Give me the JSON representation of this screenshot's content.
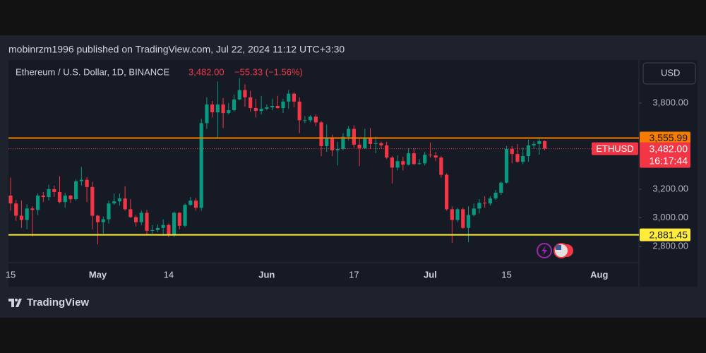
{
  "header": {
    "published": "mobinrzm1996 published on TradingView.com, Jul 22, 2024 11:12 UTC+3:30",
    "symbol": "Ethereum / U.S. Dollar, 1D, BINANCE",
    "price": "3,482.00",
    "change": "−55.33 (−1.56%)",
    "currency": "USD"
  },
  "footer": {
    "brand": "TradingView"
  },
  "chart_data": {
    "type": "candlestick",
    "categories": [
      "15",
      null,
      null,
      null,
      null,
      null,
      null,
      null,
      null,
      null,
      null,
      null,
      null,
      null,
      null,
      null,
      "May",
      null,
      null,
      null,
      null,
      null,
      null,
      null,
      null,
      null,
      null,
      null,
      null,
      "14",
      null,
      null,
      null,
      null,
      null,
      null,
      null,
      null,
      null,
      null,
      null,
      null,
      null,
      null,
      null,
      null,
      null,
      "Jun",
      null,
      null,
      null,
      null,
      null,
      null,
      null,
      null,
      null,
      null,
      null,
      null,
      null,
      null,
      null,
      "17",
      null,
      null,
      null,
      null,
      null,
      null,
      null,
      null,
      null,
      null,
      null,
      null,
      null,
      "Jul",
      null,
      null,
      null,
      null,
      null,
      null,
      null,
      null,
      null,
      null,
      null,
      null,
      null,
      "15",
      null,
      null,
      null,
      null,
      null,
      null,
      null,
      null,
      null,
      null,
      null,
      null,
      null,
      null,
      null,
      null,
      "Aug"
    ],
    "open": [
      3155,
      3100,
      3015,
      2985,
      3065,
      3055,
      3155,
      3145,
      3200,
      3180,
      3110,
      3155,
      3130,
      3255,
      3265,
      3215,
      3015,
      2970,
      2990,
      3100,
      3115,
      3135,
      3060,
      3005,
      2970,
      3035,
      2910,
      2915,
      2930,
      2950,
      2880,
      3035,
      2945,
      3090,
      3120,
      3070,
      3660,
      3790,
      3735,
      3790,
      3730,
      3750,
      3825,
      3890,
      3840,
      3765,
      3745,
      3760,
      3770,
      3780,
      3765,
      3810,
      3865,
      3810,
      3680,
      3680,
      3705,
      3665,
      3500,
      3560,
      3470,
      3480,
      3565,
      3620,
      3510,
      3485,
      3560,
      3515,
      3520,
      3505,
      3420,
      3350,
      3395,
      3370,
      3450,
      3375,
      3380,
      3440,
      3435,
      3420,
      3300,
      3060,
      2985,
      3060,
      2930,
      3020,
      3065,
      3105,
      3100,
      3135,
      3175,
      3245,
      3480,
      3445,
      3390,
      3430,
      3505,
      3515,
      3535,
      null,
      null,
      null,
      null,
      null,
      null,
      null,
      null,
      null,
      null
    ],
    "high": [
      3280,
      3125,
      3120,
      3095,
      3080,
      3170,
      3180,
      3230,
      3225,
      3290,
      3175,
      3160,
      3270,
      3355,
      3285,
      3250,
      3020,
      3010,
      3120,
      3170,
      3170,
      3220,
      3130,
      3020,
      3050,
      3055,
      2950,
      2955,
      2990,
      2960,
      3045,
      3040,
      3100,
      3145,
      3140,
      3690,
      3840,
      3815,
      3950,
      3835,
      3800,
      3860,
      3975,
      3930,
      3885,
      3830,
      3850,
      3790,
      3830,
      3850,
      3830,
      3890,
      3875,
      3840,
      3710,
      3715,
      3720,
      3675,
      3650,
      3580,
      3530,
      3590,
      3640,
      3645,
      3560,
      3620,
      3625,
      3565,
      3530,
      3530,
      3430,
      3435,
      3425,
      3485,
      3485,
      3410,
      3460,
      3525,
      3460,
      3430,
      3310,
      3080,
      3070,
      3070,
      3080,
      3100,
      3130,
      3150,
      3150,
      3195,
      3255,
      3500,
      3500,
      3515,
      3490,
      3545,
      3535,
      3550,
      3540,
      null,
      null,
      null,
      null,
      null,
      null,
      null,
      null,
      null,
      null
    ],
    "low": [
      3050,
      2980,
      2930,
      2920,
      2870,
      3020,
      3110,
      3120,
      3145,
      3100,
      3070,
      3105,
      3120,
      3225,
      3110,
      2920,
      2815,
      2890,
      2960,
      3090,
      3085,
      3050,
      3000,
      2940,
      2950,
      2880,
      2890,
      2900,
      2875,
      2865,
      2865,
      2920,
      2935,
      3085,
      3050,
      3050,
      3620,
      3700,
      3550,
      3625,
      3720,
      3740,
      3820,
      3775,
      3740,
      3700,
      3720,
      3750,
      3750,
      3760,
      3730,
      3760,
      3770,
      3590,
      3660,
      3665,
      3640,
      3430,
      3460,
      3430,
      3365,
      3470,
      3540,
      3490,
      3360,
      3480,
      3480,
      3450,
      3485,
      3410,
      3240,
      3330,
      3330,
      3365,
      3365,
      3370,
      3365,
      3420,
      3395,
      3280,
      3050,
      2825,
      2970,
      2925,
      2830,
      3010,
      3030,
      3070,
      3085,
      3125,
      3160,
      3240,
      3380,
      3385,
      3375,
      3390,
      3480,
      3440,
      3470,
      null,
      null,
      null,
      null,
      null,
      null,
      null,
      null,
      null,
      null
    ],
    "close": [
      3100,
      3015,
      2985,
      3065,
      3055,
      3155,
      3145,
      3200,
      3180,
      3110,
      3155,
      3130,
      3255,
      3265,
      3215,
      3015,
      2970,
      2990,
      3100,
      3115,
      3135,
      3060,
      3005,
      2970,
      3035,
      2910,
      2915,
      2930,
      2950,
      2880,
      3035,
      2945,
      3090,
      3120,
      3070,
      3660,
      3790,
      3735,
      3790,
      3730,
      3750,
      3825,
      3890,
      3840,
      3765,
      3745,
      3760,
      3770,
      3780,
      3765,
      3810,
      3865,
      3810,
      3680,
      3680,
      3705,
      3665,
      3500,
      3560,
      3470,
      3480,
      3565,
      3620,
      3510,
      3485,
      3560,
      3515,
      3520,
      3505,
      3420,
      3350,
      3395,
      3370,
      3450,
      3375,
      3380,
      3440,
      3435,
      3420,
      3300,
      3060,
      2985,
      3060,
      2930,
      3020,
      3065,
      3105,
      3100,
      3135,
      3175,
      3245,
      3480,
      3445,
      3390,
      3430,
      3505,
      3515,
      3535,
      3482,
      null,
      null,
      null,
      null,
      null,
      null,
      null,
      null,
      null,
      null
    ],
    "up_color": "#089981",
    "down_color": "#f23645",
    "ylim": [
      2688,
      4075
    ],
    "yticks": [
      {
        "value": 2800,
        "label": "2,800.00"
      },
      {
        "value": 3000,
        "label": "3,000.00"
      },
      {
        "value": 3200,
        "label": "3,200.00"
      },
      {
        "value": 3800,
        "label": "3,800.00"
      }
    ],
    "grid": false,
    "hlines": [
      {
        "value": 3555.99,
        "label": "3,555.99",
        "color": "#f57c00"
      },
      {
        "value": 2881.45,
        "label": "2,881.45",
        "color": "#ffeb3b"
      }
    ],
    "last_price": {
      "symbol": "ETHUSD",
      "value": 3482,
      "label": "3,482.00",
      "countdown": "16:17:44",
      "color": "#f23645"
    }
  }
}
